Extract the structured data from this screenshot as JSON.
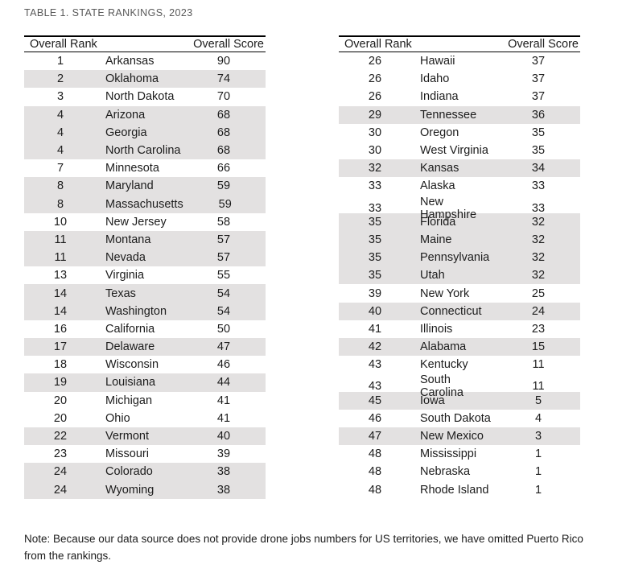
{
  "title": "TABLE 1. STATE RANKINGS, 2023",
  "note": "Note: Because our data source does not provide drone jobs numbers for US territories, we have omitted Puerto Rico from the rankings.",
  "colors": {
    "stripe": "#e3e1e1",
    "title_text": "#595959",
    "body_text": "#1c1c1c",
    "border": "#000000"
  },
  "tables": [
    {
      "headers": {
        "rank": "Overall Rank",
        "score": "Overall Score"
      },
      "rows": [
        {
          "rank": "1",
          "state": "Arkansas",
          "score": "90",
          "shaded": false
        },
        {
          "rank": "2",
          "state": "Oklahoma",
          "score": "74",
          "shaded": true
        },
        {
          "rank": "3",
          "state": "North Dakota",
          "score": "70",
          "shaded": false
        },
        {
          "rank": "4",
          "state": "Arizona",
          "score": "68",
          "shaded": true
        },
        {
          "rank": "4",
          "state": "Georgia",
          "score": "68",
          "shaded": true
        },
        {
          "rank": "4",
          "state": "North Carolina",
          "score": "68",
          "shaded": true
        },
        {
          "rank": "7",
          "state": "Minnesota",
          "score": "66",
          "shaded": false
        },
        {
          "rank": "8",
          "state": "Maryland",
          "score": "59",
          "shaded": true
        },
        {
          "rank": "8",
          "state": "Massachusetts",
          "score": "59",
          "shaded": true
        },
        {
          "rank": "10",
          "state": "New Jersey",
          "score": "58",
          "shaded": false
        },
        {
          "rank": "11",
          "state": "Montana",
          "score": "57",
          "shaded": true
        },
        {
          "rank": "11",
          "state": "Nevada",
          "score": "57",
          "shaded": true
        },
        {
          "rank": "13",
          "state": "Virginia",
          "score": "55",
          "shaded": false
        },
        {
          "rank": "14",
          "state": "Texas",
          "score": "54",
          "shaded": true
        },
        {
          "rank": "14",
          "state": "Washington",
          "score": "54",
          "shaded": true
        },
        {
          "rank": "16",
          "state": "California",
          "score": "50",
          "shaded": false
        },
        {
          "rank": "17",
          "state": "Delaware",
          "score": "47",
          "shaded": true
        },
        {
          "rank": "18",
          "state": "Wisconsin",
          "score": "46",
          "shaded": false
        },
        {
          "rank": "19",
          "state": "Louisiana",
          "score": "44",
          "shaded": true
        },
        {
          "rank": "20",
          "state": "Michigan",
          "score": "41",
          "shaded": false
        },
        {
          "rank": "20",
          "state": "Ohio",
          "score": "41",
          "shaded": false
        },
        {
          "rank": "22",
          "state": "Vermont",
          "score": "40",
          "shaded": true
        },
        {
          "rank": "23",
          "state": "Missouri",
          "score": "39",
          "shaded": false
        },
        {
          "rank": "24",
          "state": "Colorado",
          "score": "38",
          "shaded": true
        },
        {
          "rank": "24",
          "state": "Wyoming",
          "score": "38",
          "shaded": true
        }
      ]
    },
    {
      "headers": {
        "rank": "Overall Rank",
        "score": "Overall Score"
      },
      "rows": [
        {
          "rank": "26",
          "state": "Hawaii",
          "score": "37",
          "shaded": false
        },
        {
          "rank": "26",
          "state": "Idaho",
          "score": "37",
          "shaded": false
        },
        {
          "rank": "26",
          "state": "Indiana",
          "score": "37",
          "shaded": false
        },
        {
          "rank": "29",
          "state": "Tennessee",
          "score": "36",
          "shaded": true
        },
        {
          "rank": "30",
          "state": "Oregon",
          "score": "35",
          "shaded": false
        },
        {
          "rank": "30",
          "state": "West Virginia",
          "score": "35",
          "shaded": false
        },
        {
          "rank": "32",
          "state": "Kansas",
          "score": "34",
          "shaded": true
        },
        {
          "rank": "33",
          "state": "Alaska",
          "score": "33",
          "shaded": false
        },
        {
          "rank": "33",
          "state": "New Hampshire",
          "score": "33",
          "shaded": false
        },
        {
          "rank": "35",
          "state": "Florida",
          "score": "32",
          "shaded": true
        },
        {
          "rank": "35",
          "state": "Maine",
          "score": "32",
          "shaded": true
        },
        {
          "rank": "35",
          "state": "Pennsylvania",
          "score": "32",
          "shaded": true
        },
        {
          "rank": "35",
          "state": "Utah",
          "score": "32",
          "shaded": true
        },
        {
          "rank": "39",
          "state": "New York",
          "score": "25",
          "shaded": false
        },
        {
          "rank": "40",
          "state": "Connecticut",
          "score": "24",
          "shaded": true
        },
        {
          "rank": "41",
          "state": "Illinois",
          "score": "23",
          "shaded": false
        },
        {
          "rank": "42",
          "state": "Alabama",
          "score": "15",
          "shaded": true
        },
        {
          "rank": "43",
          "state": "Kentucky",
          "score": "11",
          "shaded": false
        },
        {
          "rank": "43",
          "state": "South Carolina",
          "score": "11",
          "shaded": false
        },
        {
          "rank": "45",
          "state": "Iowa",
          "score": "5",
          "shaded": true
        },
        {
          "rank": "46",
          "state": "South Dakota",
          "score": "4",
          "shaded": false
        },
        {
          "rank": "47",
          "state": "New Mexico",
          "score": "3",
          "shaded": true
        },
        {
          "rank": "48",
          "state": "Mississippi",
          "score": "1",
          "shaded": false
        },
        {
          "rank": "48",
          "state": "Nebraska",
          "score": "1",
          "shaded": false
        },
        {
          "rank": "48",
          "state": "Rhode Island",
          "score": "1",
          "shaded": false
        }
      ]
    }
  ]
}
